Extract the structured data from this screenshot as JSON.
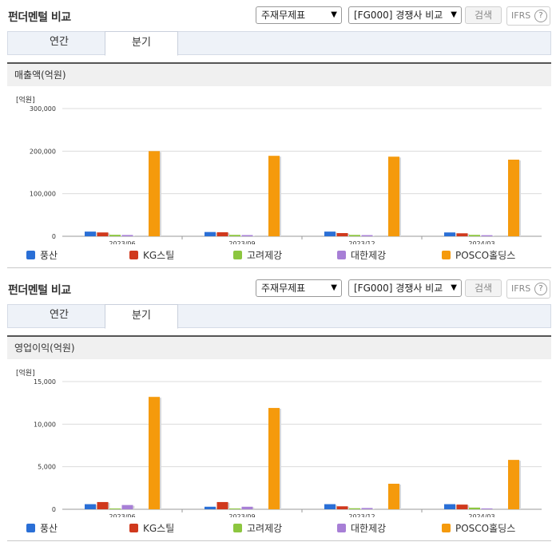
{
  "sections": [
    {
      "title": "펀더멘털 비교",
      "select1": "주재무제표",
      "select2": "[FG000] 경쟁사 비교",
      "search_label": "검색",
      "ifrs_label": "IFRS",
      "ifrs_help": "?",
      "tabs": [
        "연간",
        "분기"
      ],
      "active_tab": "분기",
      "panel_title": "매출액(억원)",
      "unit": "[억원]"
    },
    {
      "title": "펀더멘털 비교",
      "select1": "주재무제표",
      "select2": "[FG000] 경쟁사 비교",
      "search_label": "검색",
      "ifrs_label": "IFRS",
      "ifrs_help": "?",
      "tabs": [
        "연간",
        "분기"
      ],
      "active_tab": "분기",
      "panel_title": "영업이익(억원)",
      "unit": "[억원]"
    }
  ],
  "legend": [
    {
      "name": "풍산",
      "color": "#2a6fd6"
    },
    {
      "name": "KG스틸",
      "color": "#d0391d"
    },
    {
      "name": "고려제강",
      "color": "#8cc63f"
    },
    {
      "name": "대한제강",
      "color": "#a77fd6"
    },
    {
      "name": "POSCO홀딩스",
      "color": "#f59a0c"
    }
  ],
  "chart_data": [
    {
      "type": "bar",
      "title": "매출액(억원)",
      "ylabel": "[억원]",
      "categories": [
        "2023/06",
        "2023/09",
        "2023/12",
        "2024/03"
      ],
      "ylim": [
        0,
        300000
      ],
      "yticks": [
        "0",
        "100,000",
        "200,000",
        "300,000"
      ],
      "ytick_values": [
        0,
        100000,
        200000,
        300000
      ],
      "grid": true,
      "legend_position": "bottom",
      "series": [
        {
          "name": "풍산",
          "color": "#2a6fd6",
          "values": [
            11000,
            10000,
            11000,
            9000
          ]
        },
        {
          "name": "KG스틸",
          "color": "#d0391d",
          "values": [
            9000,
            9500,
            7500,
            7000
          ]
        },
        {
          "name": "고려제강",
          "color": "#8cc63f",
          "values": [
            3500,
            3300,
            3200,
            3300
          ]
        },
        {
          "name": "대한제강",
          "color": "#a77fd6",
          "values": [
            3000,
            2800,
            2700,
            2500
          ]
        },
        {
          "name": "POSCO홀딩스",
          "color": "#f59a0c",
          "values": [
            200000,
            189000,
            187000,
            180000
          ]
        }
      ]
    },
    {
      "type": "bar",
      "title": "영업이익(억원)",
      "ylabel": "[억원]",
      "categories": [
        "2023/06",
        "2023/09",
        "2023/12",
        "2024/03"
      ],
      "ylim": [
        0,
        15000
      ],
      "yticks": [
        "0",
        "5,000",
        "10,000",
        "15,000"
      ],
      "ytick_values": [
        0,
        5000,
        10000,
        15000
      ],
      "grid": true,
      "legend_position": "bottom",
      "series": [
        {
          "name": "풍산",
          "color": "#2a6fd6",
          "values": [
            600,
            300,
            600,
            600
          ]
        },
        {
          "name": "KG스틸",
          "color": "#d0391d",
          "values": [
            850,
            850,
            350,
            550
          ]
        },
        {
          "name": "고려제강",
          "color": "#8cc63f",
          "values": [
            80,
            50,
            120,
            200
          ]
        },
        {
          "name": "대한제강",
          "color": "#a77fd6",
          "values": [
            500,
            300,
            150,
            100
          ]
        },
        {
          "name": "POSCO홀딩스",
          "color": "#f59a0c",
          "values": [
            13200,
            11900,
            3000,
            5800
          ]
        }
      ]
    }
  ]
}
